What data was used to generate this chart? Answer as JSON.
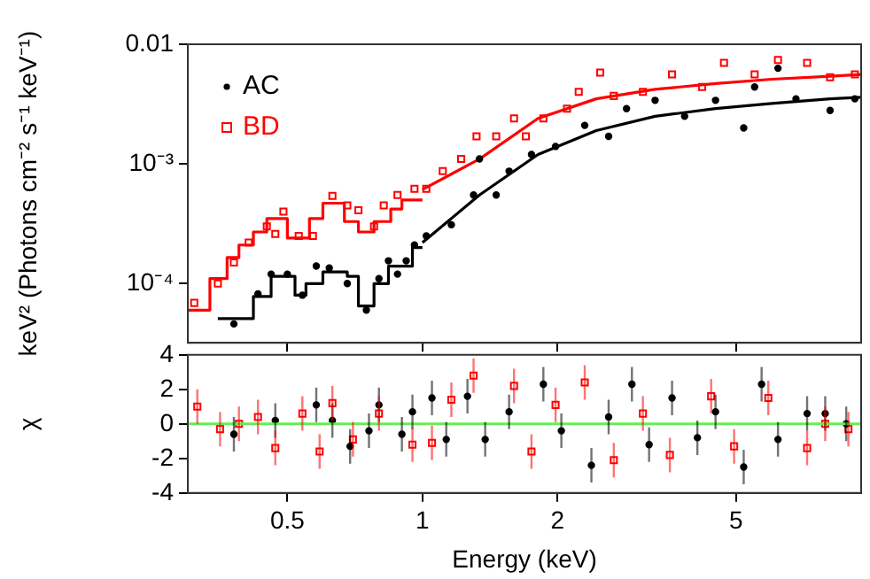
{
  "chart_data": [
    {
      "type": "scatter",
      "ylabel": "keV² (Photons cm⁻² s⁻¹ keV⁻¹)",
      "log": "xy",
      "xlim": [
        0.3,
        9.5
      ],
      "ylim": [
        3.2e-05,
        0.01
      ],
      "xticks": [
        0.5,
        1,
        2,
        5
      ],
      "yticks": [
        0.01,
        {
          "value": 0.001,
          "label": "10⁻³"
        },
        {
          "value": 0.0001,
          "label": "10⁻⁴"
        }
      ],
      "tick_labels": "y",
      "legend": "top left",
      "series": [
        {
          "name": "AC",
          "color": "#000000",
          "marker": "circle",
          "x": [
            0.38,
            0.43,
            0.46,
            0.5,
            0.54,
            0.58,
            0.62,
            0.68,
            0.75,
            0.8,
            0.84,
            0.88,
            0.92,
            0.96,
            1.02,
            1.16,
            1.3,
            1.34,
            1.46,
            1.56,
            1.75,
            1.98,
            2.3,
            2.6,
            2.85,
            3.3,
            3.84,
            4.5,
            5.2,
            5.5,
            6.2,
            6.8,
            8.1,
            9.2
          ],
          "values": [
            4.6e-05,
            8.2e-05,
            0.00012,
            0.00012,
            8e-05,
            0.00014,
            0.000135,
            0.0001,
            6e-05,
            0.00011,
            0.000155,
            0.00012,
            0.000155,
            0.00021,
            0.00025,
            0.00031,
            0.00055,
            0.0011,
            0.00055,
            0.00087,
            0.0012,
            0.0014,
            0.0021,
            0.0017,
            0.0029,
            0.0034,
            0.0025,
            0.0034,
            0.002,
            0.0044,
            0.0063,
            0.0035,
            0.0028,
            0.0035
          ]
        },
        {
          "name": "BD",
          "color": "#ff0000",
          "marker": "square",
          "x": [
            0.31,
            0.35,
            0.38,
            0.41,
            0.45,
            0.47,
            0.49,
            0.53,
            0.57,
            0.63,
            0.68,
            0.72,
            0.78,
            0.82,
            0.88,
            0.96,
            1.02,
            1.11,
            1.22,
            1.32,
            1.46,
            1.6,
            1.7,
            1.86,
            2.1,
            2.23,
            2.49,
            2.67,
            3.1,
            3.6,
            4.2,
            4.7,
            5.5,
            6.2,
            7.2,
            8.1,
            9.2
          ],
          "values": [
            6.9e-05,
            0.0001,
            0.00015,
            0.00022,
            0.0003,
            0.00026,
            0.0004,
            0.00025,
            0.00025,
            0.00054,
            0.00045,
            0.00041,
            0.0003,
            0.00045,
            0.00055,
            0.00062,
            0.00062,
            0.00087,
            0.0011,
            0.0017,
            0.0017,
            0.0024,
            0.0017,
            0.0024,
            0.0029,
            0.004,
            0.0058,
            0.0037,
            0.004,
            0.0056,
            0.0044,
            0.007,
            0.0056,
            0.0074,
            0.007,
            0.0053,
            0.0056
          ]
        },
        {
          "type": "step",
          "color": "#000000",
          "x": [
            0.35,
            0.42,
            0.46,
            0.52,
            0.55,
            0.6,
            0.68,
            0.72,
            0.78,
            0.84,
            0.95,
            1.0
          ],
          "values": [
            5.1e-05,
            7.8e-05,
            0.000115,
            8e-05,
            0.0001,
            0.000125,
            0.000115,
            6.5e-05,
            0.0001,
            0.00014,
            0.0002,
            0.0002
          ]
        },
        {
          "type": "line",
          "color": "#000000",
          "x": [
            1.0,
            1.34,
            1.81,
            2.44,
            3.3,
            4.5,
            6.0,
            8.1,
            9.5
          ],
          "values": [
            0.00022,
            0.00055,
            0.0012,
            0.0019,
            0.0025,
            0.0029,
            0.0032,
            0.0035,
            0.0036
          ]
        },
        {
          "type": "step",
          "color": "#ff0000",
          "x": [
            0.3,
            0.336,
            0.367,
            0.39,
            0.42,
            0.45,
            0.5,
            0.56,
            0.6,
            0.67,
            0.72,
            0.78,
            0.85,
            0.9,
            1.0
          ],
          "values": [
            6e-05,
            0.00011,
            0.000165,
            0.00021,
            0.00027,
            0.00035,
            0.00024,
            0.00035,
            0.00047,
            0.00033,
            0.00027,
            0.00033,
            0.00042,
            0.0005,
            0.0005
          ]
        },
        {
          "type": "line",
          "color": "#ff0000",
          "x": [
            1.0,
            1.34,
            1.81,
            2.44,
            3.3,
            4.5,
            6.0,
            8.1,
            9.5
          ],
          "values": [
            0.00061,
            0.0011,
            0.0024,
            0.0035,
            0.0042,
            0.0047,
            0.0051,
            0.0054,
            0.0056
          ]
        }
      ]
    },
    {
      "type": "scatter",
      "xlabel": "Energy (keV)",
      "ylabel": "χ",
      "log": "x",
      "xlim": [
        0.3,
        9.5
      ],
      "ylim": [
        -4,
        4
      ],
      "xticks": [
        0.5,
        1,
        2,
        5
      ],
      "yticks": [
        -4,
        -2,
        0,
        2,
        4
      ],
      "ref_lines": [
        {
          "axis": "y",
          "value": 0,
          "color": "#66ee55"
        }
      ],
      "series": [
        {
          "color": "#000000",
          "marker": "circle",
          "x": [
            0.38,
            0.47,
            0.58,
            0.63,
            0.69,
            0.76,
            0.8,
            0.9,
            0.95,
            1.05,
            1.13,
            1.26,
            1.38,
            1.56,
            1.86,
            2.04,
            2.38,
            2.6,
            2.93,
            3.2,
            3.6,
            4.1,
            4.5,
            5.2,
            5.7,
            6.2,
            7.2,
            7.9,
            8.8
          ],
          "values": [
            -0.6,
            0.2,
            1.1,
            0.2,
            -1.3,
            -0.4,
            1.1,
            -0.6,
            0.7,
            1.5,
            -0.9,
            1.6,
            -0.9,
            0.7,
            2.3,
            -0.4,
            -2.4,
            0.4,
            2.3,
            -1.2,
            1.5,
            -0.8,
            0.7,
            -2.5,
            2.3,
            -0.9,
            0.6,
            0.6,
            0
          ],
          "errors": [
            1,
            1,
            1,
            1,
            1,
            1,
            1,
            1,
            1,
            1,
            1,
            1,
            1,
            1,
            1,
            1,
            1,
            1,
            1,
            1,
            1,
            1,
            1,
            1,
            1,
            1,
            1,
            1,
            1
          ]
        },
        {
          "color": "#ff0000",
          "marker": "square",
          "x": [
            0.315,
            0.354,
            0.39,
            0.43,
            0.47,
            0.54,
            0.59,
            0.63,
            0.7,
            0.8,
            0.95,
            1.05,
            1.16,
            1.3,
            1.6,
            1.75,
            1.98,
            2.3,
            2.67,
            3.1,
            3.56,
            4.4,
            4.95,
            5.9,
            7.2,
            7.9,
            8.9
          ],
          "values": [
            1.0,
            -0.3,
            0,
            0.4,
            -1.4,
            0.6,
            -1.6,
            1.2,
            -0.9,
            0.6,
            -1.2,
            -1.1,
            1.4,
            2.8,
            2.2,
            -1.6,
            1.1,
            2.4,
            -2.1,
            0.6,
            -1.8,
            1.6,
            -1.3,
            1.5,
            -1.4,
            0,
            -0.3
          ],
          "errors": [
            1,
            1,
            1,
            1,
            1,
            1,
            1,
            1,
            1,
            1,
            1,
            1,
            1,
            1,
            1,
            1,
            1,
            1,
            1,
            1,
            1,
            1,
            1,
            1,
            1,
            1,
            1
          ]
        }
      ]
    }
  ]
}
